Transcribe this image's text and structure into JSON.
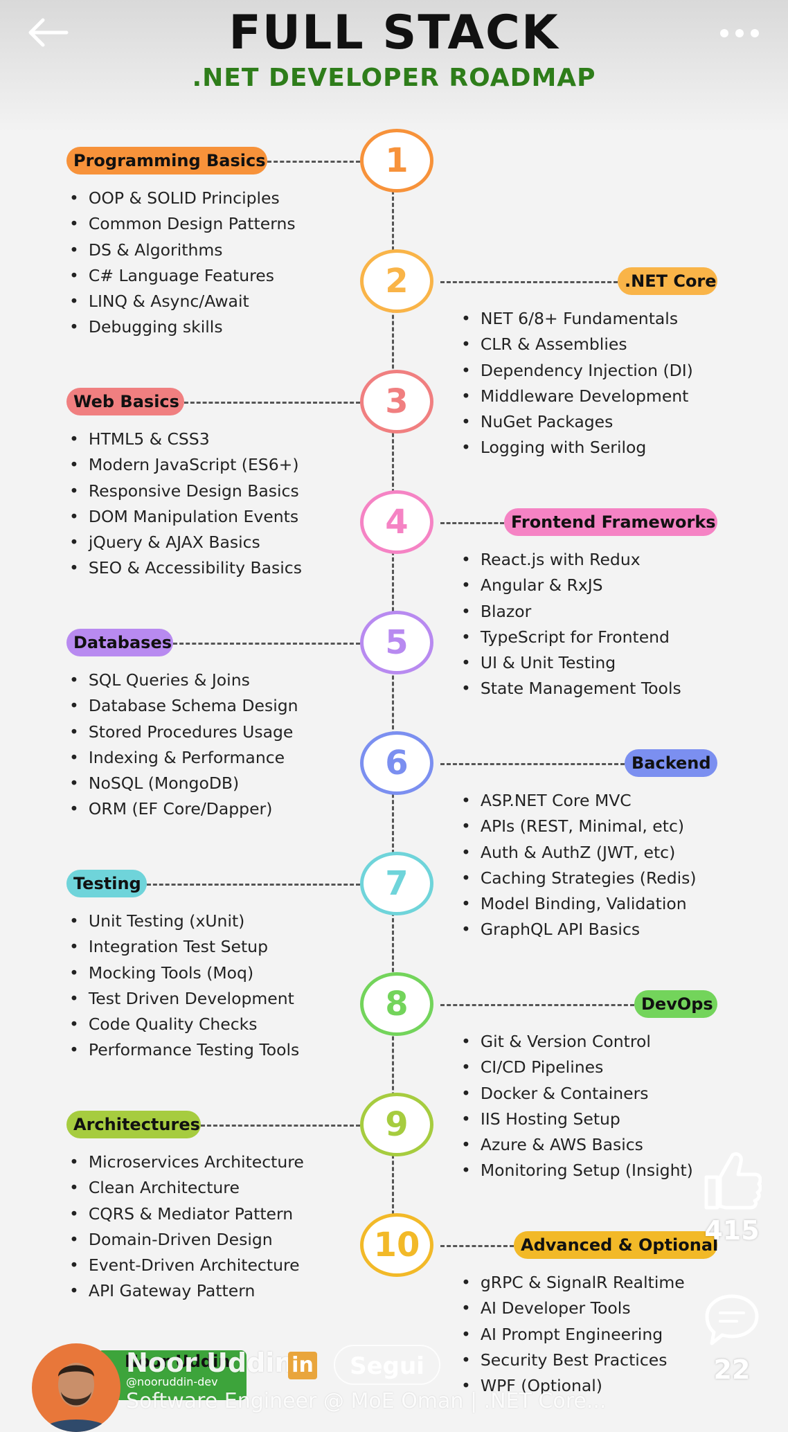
{
  "header": {
    "title": "FULL STACK",
    "subtitle": ".NET DEVELOPER ROADMAP",
    "back_icon": "arrow-left-icon",
    "more_icon": "more-horizontal-icon"
  },
  "steps": [
    {
      "number": "1",
      "title": "Programming Basics",
      "color": "#f7923a",
      "side": "left",
      "items": [
        "OOP & SOLID Principles",
        "Common Design Patterns",
        "DS & Algorithms",
        "C# Language Features",
        "LINQ & Async/Await",
        "Debugging skills"
      ]
    },
    {
      "number": "2",
      "title": ".NET Core",
      "color": "#f9b448",
      "side": "right",
      "items": [
        "NET 6/8+ Fundamentals",
        "CLR & Assemblies",
        "Dependency Injection (DI)",
        "Middleware Development",
        "NuGet Packages",
        "Logging with Serilog"
      ]
    },
    {
      "number": "3",
      "title": "Web Basics",
      "color": "#f07f80",
      "side": "left",
      "items": [
        "HTML5 & CSS3",
        "Modern JavaScript (ES6+)",
        "Responsive Design Basics",
        "DOM Manipulation Events",
        "jQuery & AJAX Basics",
        "SEO & Accessibility Basics"
      ]
    },
    {
      "number": "4",
      "title": "Frontend Frameworks",
      "color": "#f583c4",
      "side": "right",
      "items": [
        "React.js with Redux",
        "Angular & RxJS",
        "Blazor",
        "TypeScript for Frontend",
        "UI & Unit Testing",
        "State Management Tools"
      ]
    },
    {
      "number": "5",
      "title": "Databases",
      "color": "#b88af0",
      "side": "left",
      "items": [
        "SQL Queries & Joins",
        "Database Schema Design",
        "Stored Procedures Usage",
        "Indexing & Performance",
        "NoSQL (MongoDB)",
        "ORM (EF Core/Dapper)"
      ]
    },
    {
      "number": "6",
      "title": "Backend",
      "color": "#7b8ff0",
      "side": "right",
      "items": [
        "ASP.NET Core MVC",
        "APIs (REST, Minimal, etc)",
        "Auth & AuthZ (JWT, etc)",
        "Caching Strategies (Redis)",
        "Model Binding, Validation",
        "GraphQL API Basics"
      ]
    },
    {
      "number": "7",
      "title": "Testing",
      "color": "#6fd4da",
      "side": "left",
      "items": [
        "Unit Testing (xUnit)",
        "Integration Test Setup",
        "Mocking Tools (Moq)",
        "Test Driven Development",
        "Code Quality Checks",
        "Performance Testing Tools"
      ]
    },
    {
      "number": "8",
      "title": "DevOps",
      "color": "#73d45b",
      "side": "right",
      "items": [
        "Git & Version Control",
        "CI/CD Pipelines",
        "Docker & Containers",
        "IIS Hosting Setup",
        "Azure & AWS Basics",
        "Monitoring Setup (Insight)"
      ]
    },
    {
      "number": "9",
      "title": "Architectures",
      "color": "#a6cc3f",
      "side": "left",
      "items": [
        "Microservices Architecture",
        "Clean Architecture",
        "CQRS & Mediator Pattern",
        "Domain-Driven Design",
        "Event-Driven Architecture",
        "API Gateway Pattern"
      ]
    },
    {
      "number": "10",
      "title": "Advanced & Optional",
      "color": "#f2b928",
      "side": "right",
      "items": [
        "gRPC & SignalR Realtime",
        "AI Developer Tools",
        "AI Prompt Engineering",
        "Security Best Practices",
        "WPF (Optional)"
      ]
    }
  ],
  "actions": {
    "like_icon": "thumbs-up-icon",
    "like_count": "415",
    "comment_icon": "comment-icon",
    "comment_count": "22"
  },
  "author": {
    "badge_name": "Noor Uddin",
    "badge_handle": "@nooruddin-dev",
    "name": "Noor Uddin",
    "linkedin_icon": "in",
    "follow_label": "Segui",
    "headline": "Software Engineer @ MoE Oman | .NET Core..."
  }
}
